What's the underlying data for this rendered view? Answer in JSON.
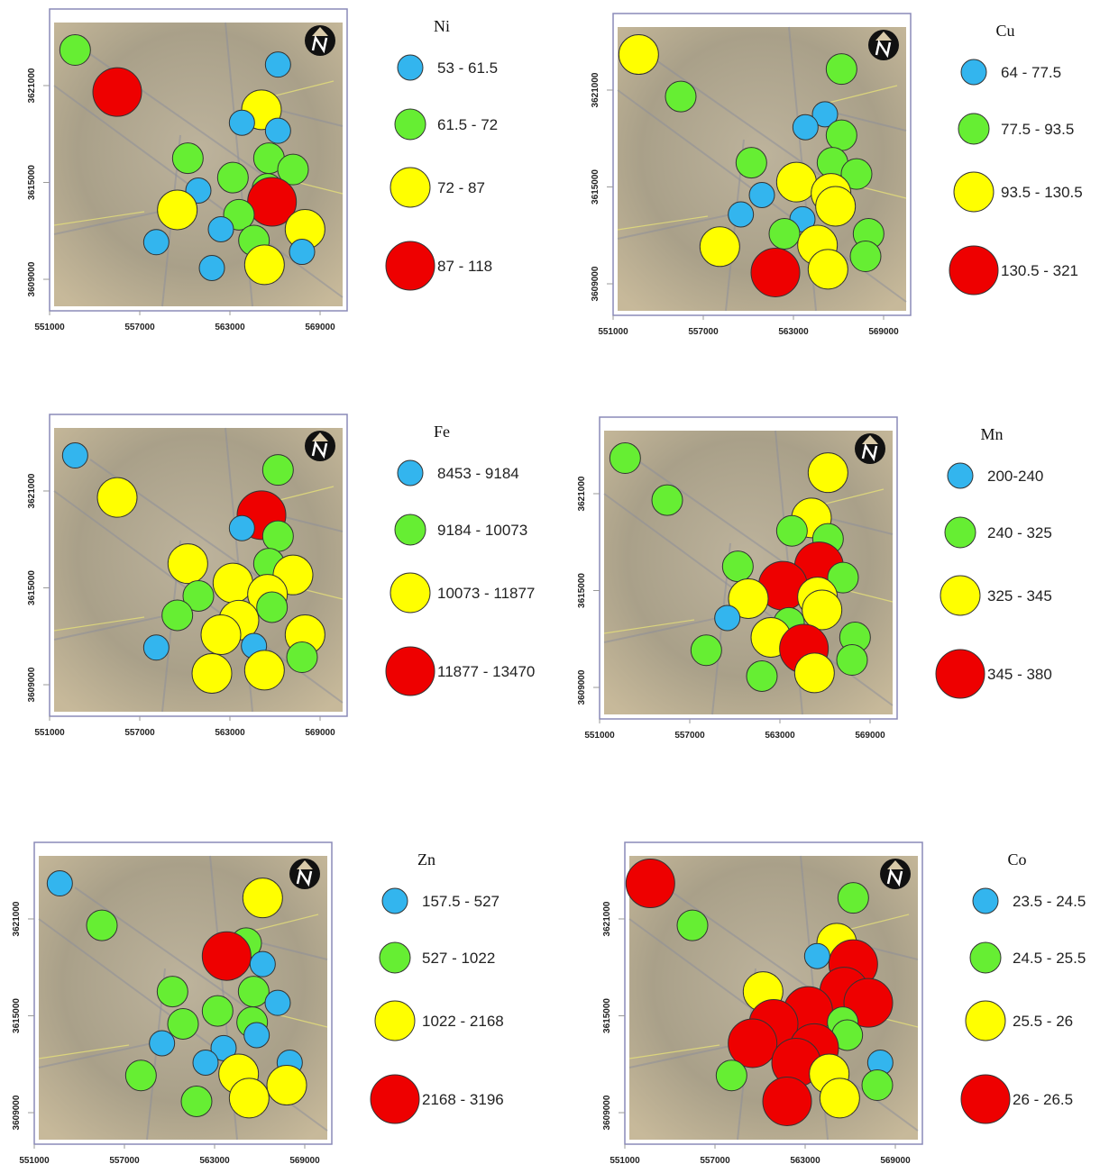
{
  "xticks": [
    551000,
    557000,
    563000,
    569000
  ],
  "yticks": [
    3609000,
    3615000,
    3621000
  ],
  "colors": [
    "#33b5ee",
    "#66ee33",
    "#ffff00",
    "#ee0000"
  ],
  "sites": [
    {
      "x": 552700,
      "y": 3623200
    },
    {
      "x": 555500,
      "y": 3620600
    },
    {
      "x": 566200,
      "y": 3622300
    },
    {
      "x": 565100,
      "y": 3619500
    },
    {
      "x": 563800,
      "y": 3618700
    },
    {
      "x": 566200,
      "y": 3618200
    },
    {
      "x": 560200,
      "y": 3616500
    },
    {
      "x": 565600,
      "y": 3616500
    },
    {
      "x": 567200,
      "y": 3615800
    },
    {
      "x": 563200,
      "y": 3615300
    },
    {
      "x": 560900,
      "y": 3614500
    },
    {
      "x": 565500,
      "y": 3614600
    },
    {
      "x": 565800,
      "y": 3613800
    },
    {
      "x": 559500,
      "y": 3613300
    },
    {
      "x": 563600,
      "y": 3613000
    },
    {
      "x": 568000,
      "y": 3612100
    },
    {
      "x": 562400,
      "y": 3612100
    },
    {
      "x": 564600,
      "y": 3611400
    },
    {
      "x": 558100,
      "y": 3611300
    },
    {
      "x": 567800,
      "y": 3610700
    },
    {
      "x": 565300,
      "y": 3609900
    },
    {
      "x": 561800,
      "y": 3609700
    }
  ],
  "maps": [
    {
      "title": "Ni",
      "legend": [
        "53 - 61.5",
        "61.5 - 72",
        "72 - 87",
        "87 - 118"
      ],
      "classes": [
        "61.5 - 72",
        "87 - 118",
        "53 - 61.5",
        "72 - 87",
        "53 - 61.5",
        "53 - 61.5",
        "61.5 - 72",
        "61.5 - 72",
        "61.5 - 72",
        "61.5 - 72",
        "53 - 61.5",
        "61.5 - 72",
        "87 - 118",
        "72 - 87",
        "61.5 - 72",
        "72 - 87",
        "53 - 61.5",
        "61.5 - 72",
        "53 - 61.5",
        "53 - 61.5",
        "72 - 87",
        "53 - 61.5"
      ]
    },
    {
      "title": "Cu",
      "legend": [
        "64 - 77.5",
        "77.5 - 93.5",
        "93.5 - 130.5",
        "130.5 - 321"
      ],
      "classes": [
        "93.5 - 130.5",
        "77.5 - 93.5",
        "77.5 - 93.5",
        "64 - 77.5",
        "64 - 77.5",
        "77.5 - 93.5",
        "77.5 - 93.5",
        "77.5 - 93.5",
        "77.5 - 93.5",
        "93.5 - 130.5",
        "64 - 77.5",
        "93.5 - 130.5",
        "93.5 - 130.5",
        "64 - 77.5",
        "64 - 77.5",
        "77.5 - 93.5",
        "77.5 - 93.5",
        "93.5 - 130.5",
        "93.5 - 130.5",
        "77.5 - 93.5",
        "93.5 - 130.5",
        "130.5 - 321"
      ]
    },
    {
      "title": "Fe",
      "legend": [
        "8453 - 9184",
        "9184 - 10073",
        "10073 - 11877",
        "11877 - 13470"
      ],
      "classes": [
        "8453 - 9184",
        "10073 - 11877",
        "9184 - 10073",
        "11877 - 13470",
        "8453 - 9184",
        "9184 - 10073",
        "10073 - 11877",
        "9184 - 10073",
        "10073 - 11877",
        "10073 - 11877",
        "9184 - 10073",
        "10073 - 11877",
        "9184 - 10073",
        "9184 - 10073",
        "10073 - 11877",
        "10073 - 11877",
        "10073 - 11877",
        "8453 - 9184",
        "8453 - 9184",
        "9184 - 10073",
        "10073 - 11877",
        "10073 - 11877"
      ]
    },
    {
      "title": "Mn",
      "legend": [
        "200-240",
        "240 - 325",
        "325 - 345",
        "345 - 380"
      ],
      "classes": [
        "240 - 325",
        "240 - 325",
        "325 - 345",
        "325 - 345",
        "240 - 325",
        "240 - 325",
        "240 - 325",
        "345 - 380",
        "240 - 325",
        "345 - 380",
        "325 - 345",
        "325 - 345",
        "325 - 345",
        "200-240",
        "240 - 325",
        "240 - 325",
        "325 - 345",
        "345 - 380",
        "240 - 325",
        "240 - 325",
        "325 - 345",
        "240 - 325"
      ]
    },
    {
      "title": "Zn",
      "legend": [
        "157.5 - 527",
        "527 - 1022",
        "1022 - 2168",
        "2168 - 3196"
      ],
      "classes": [
        "157.5 - 527",
        "527 - 1022",
        "1022 - 2168",
        "527 - 1022",
        "2168 - 3196",
        "157.5 - 527",
        "527 - 1022",
        "527 - 1022",
        "157.5 - 527",
        "527 - 1022",
        "527 - 1022",
        "527 - 1022",
        "157.5 - 527",
        "157.5 - 527",
        "157.5 - 527",
        "157.5 - 527",
        "157.5 - 527",
        "1022 - 2168",
        "527 - 1022",
        "1022 - 2168",
        "1022 - 2168",
        "527 - 1022"
      ]
    },
    {
      "title": "Co",
      "legend": [
        "23.5 - 24.5",
        "24.5 - 25.5",
        "25.5 - 26",
        "26 - 26.5"
      ],
      "classes": [
        "26 - 26.5",
        "24.5 - 25.5",
        "24.5 - 25.5",
        "25.5 - 26",
        "23.5 - 24.5",
        "26 - 26.5",
        "25.5 - 26",
        "26 - 26.5",
        "26 - 26.5",
        "26 - 26.5",
        "26 - 26.5",
        "24.5 - 25.5",
        "24.5 - 25.5",
        "26 - 26.5",
        "26 - 26.5",
        "23.5 - 24.5",
        "26 - 26.5",
        "25.5 - 26",
        "24.5 - 25.5",
        "24.5 - 25.5",
        "25.5 - 26",
        "26 - 26.5"
      ]
    }
  ]
}
